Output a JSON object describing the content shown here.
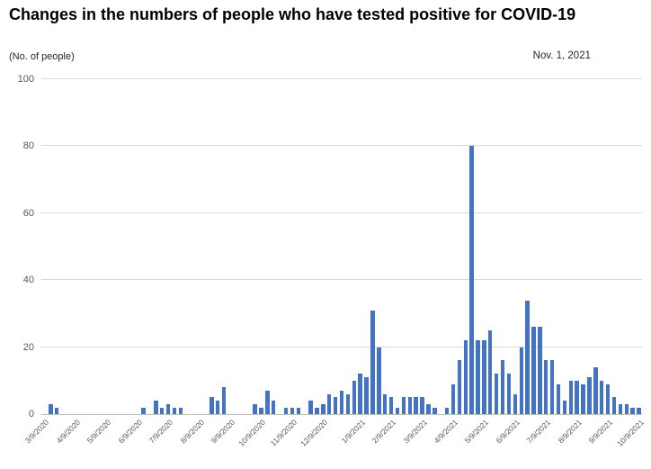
{
  "header": {
    "title": "Changes in the numbers of people who have tested positive for COVID-19",
    "unit_label": "(No. of people)",
    "date_label": "Nov. 1, 2021"
  },
  "chart_data": {
    "type": "bar",
    "title": "Changes in the numbers of people who have tested positive for COVID-19",
    "ylabel": "(No. of people)",
    "xlabel": "",
    "ylim": [
      0,
      100
    ],
    "y_ticks": [
      0,
      20,
      40,
      60,
      80,
      100
    ],
    "grid": true,
    "legend": "none",
    "bar_color": "#4472C4",
    "gridline_color": "#d9d9d9",
    "axis_label_color": "#595959",
    "x_tick_labels": [
      "3/9/2020",
      "4/9/2020",
      "5/9/2020",
      "6/9/2020",
      "7/9/2020",
      "8/9/2020",
      "9/9/2020",
      "10/9/2020",
      "11/9/2020",
      "12/9/2020",
      "1/9/2021",
      "2/9/2021",
      "3/9/2021",
      "4/9/2021",
      "5/9/2021",
      "6/9/2021",
      "7/9/2021",
      "8/9/2021",
      "9/9/2021",
      "10/9/2021"
    ],
    "x_tick_indices": [
      0,
      5,
      10,
      15,
      20,
      25,
      30,
      35,
      40,
      45,
      51,
      56,
      61,
      66,
      71,
      76,
      81,
      86,
      91,
      96
    ],
    "values": [
      0,
      3,
      2,
      0,
      0,
      0,
      0,
      0,
      0,
      0,
      0,
      0,
      0,
      0,
      0,
      0,
      2,
      0,
      4,
      2,
      3,
      2,
      2,
      0,
      0,
      0,
      0,
      5,
      4,
      8,
      0,
      0,
      0,
      0,
      3,
      2,
      7,
      4,
      0,
      2,
      2,
      2,
      0,
      4,
      2,
      3,
      6,
      5,
      7,
      6,
      10,
      12,
      11,
      31,
      20,
      6,
      5,
      2,
      5,
      5,
      5,
      5,
      3,
      2,
      0,
      2,
      9,
      16,
      22,
      80,
      22,
      22,
      25,
      12,
      16,
      12,
      6,
      20,
      34,
      26,
      26,
      16,
      16,
      9,
      4,
      10,
      10,
      9,
      11,
      14,
      10,
      9,
      5,
      3,
      3,
      2,
      2
    ]
  }
}
